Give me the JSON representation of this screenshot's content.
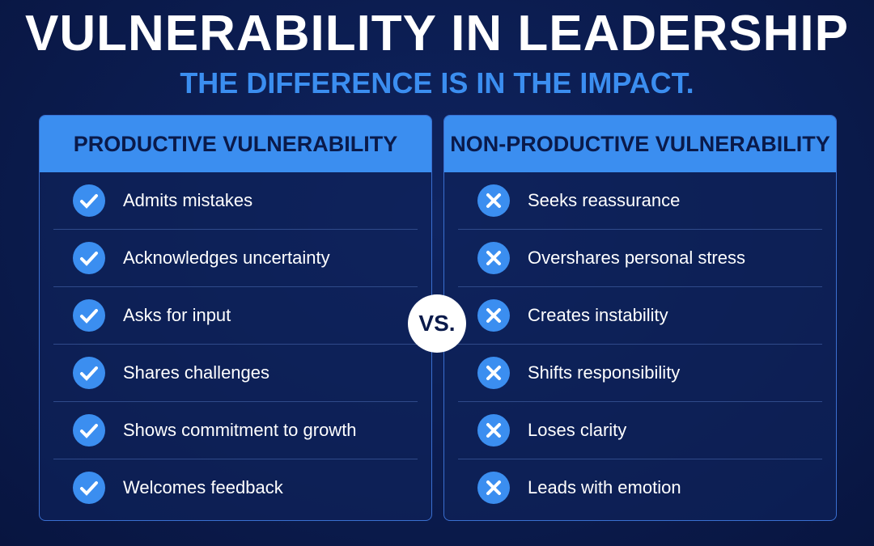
{
  "header": {
    "title": "VULNERABILITY IN LEADERSHIP",
    "subtitle": "THE DIFFERENCE IS IN THE IMPACT."
  },
  "columns": [
    {
      "title": "PRODUCTIVE VULNERABILITY",
      "items": [
        "Admits mistakes",
        "Acknowledges uncertainty",
        "Asks for input",
        "Shares challenges",
        "Shows commitment to growth",
        "Welcomes feedback"
      ]
    },
    {
      "title": "NON-PRODUCTIVE VULNERABILITY",
      "items": [
        "Seeks reassurance",
        "Overshares personal stress",
        "Creates instability",
        "Shifts responsibility",
        "Loses clarity",
        "Leads with emotion"
      ]
    }
  ],
  "vs": "VS."
}
